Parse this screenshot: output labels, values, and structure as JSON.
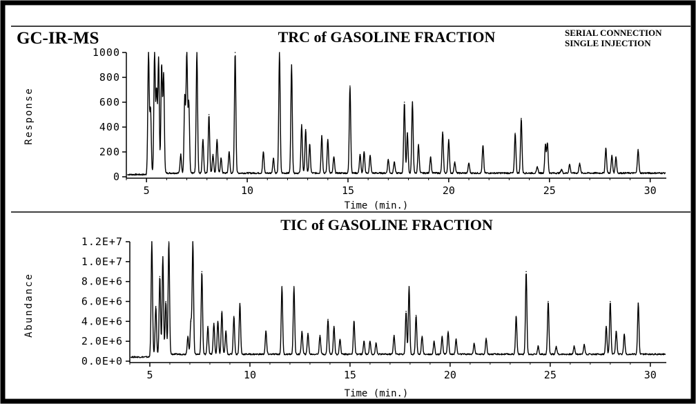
{
  "header": {
    "label": "GC-IR-MS",
    "note_line1": "SERIAL CONNECTION",
    "note_line2": "SINGLE INJECTION"
  },
  "chart_data": [
    {
      "type": "line",
      "title": "TRC of GASOLINE FRACTION",
      "xlabel": "Time   (min.)",
      "ylabel": "Response",
      "xlim": [
        4,
        30.8
      ],
      "ylim": [
        0,
        1000
      ],
      "xticks": [
        5,
        10,
        15,
        20,
        25,
        30
      ],
      "yticks": [
        0,
        200,
        400,
        600,
        800,
        1000
      ],
      "ytick_labels": [
        "0",
        "200",
        "400",
        "600",
        "800",
        "1000"
      ],
      "color": "#000000",
      "baseline": 30,
      "peaks": [
        [
          5.1,
          1000
        ],
        [
          5.2,
          550
        ],
        [
          5.4,
          1000
        ],
        [
          5.5,
          700
        ],
        [
          5.6,
          950
        ],
        [
          5.75,
          900
        ],
        [
          5.85,
          820
        ],
        [
          6.7,
          180
        ],
        [
          6.9,
          650
        ],
        [
          7.0,
          1000
        ],
        [
          7.1,
          600
        ],
        [
          7.5,
          1000
        ],
        [
          7.8,
          300
        ],
        [
          8.1,
          500
        ],
        [
          8.3,
          180
        ],
        [
          8.5,
          300
        ],
        [
          8.7,
          150
        ],
        [
          9.1,
          200
        ],
        [
          9.4,
          1000
        ],
        [
          10.8,
          200
        ],
        [
          11.3,
          150
        ],
        [
          11.6,
          1000
        ],
        [
          12.2,
          900
        ],
        [
          12.7,
          420
        ],
        [
          12.9,
          380
        ],
        [
          13.1,
          260
        ],
        [
          13.7,
          330
        ],
        [
          14.0,
          300
        ],
        [
          14.3,
          160
        ],
        [
          15.1,
          730
        ],
        [
          15.6,
          180
        ],
        [
          15.8,
          200
        ],
        [
          16.1,
          170
        ],
        [
          17.0,
          140
        ],
        [
          17.3,
          120
        ],
        [
          17.8,
          600
        ],
        [
          17.95,
          350
        ],
        [
          18.2,
          600
        ],
        [
          18.5,
          260
        ],
        [
          19.1,
          160
        ],
        [
          19.7,
          360
        ],
        [
          20.0,
          300
        ],
        [
          20.3,
          120
        ],
        [
          21.0,
          110
        ],
        [
          21.7,
          250
        ],
        [
          23.3,
          350
        ],
        [
          23.6,
          470
        ],
        [
          24.4,
          80
        ],
        [
          24.8,
          260
        ],
        [
          24.9,
          270
        ],
        [
          25.6,
          60
        ],
        [
          26.0,
          100
        ],
        [
          26.5,
          110
        ],
        [
          27.8,
          230
        ],
        [
          28.1,
          170
        ],
        [
          28.3,
          160
        ],
        [
          29.4,
          220
        ]
      ]
    },
    {
      "type": "line",
      "title": "TIC of GASOLINE FRACTION",
      "xlabel": "Time   (min.)",
      "ylabel": "Abundance",
      "xlim": [
        4,
        30.8
      ],
      "ylim": [
        0,
        12000000
      ],
      "xticks": [
        5,
        10,
        15,
        20,
        25,
        30
      ],
      "yticks": [
        0,
        2000000,
        4000000,
        6000000,
        8000000,
        10000000,
        12000000
      ],
      "ytick_labels": [
        "0.0E+0",
        "2.0E+6",
        "4.0E+6",
        "6.0E+6",
        "8.0E+6",
        "1.0E+7",
        "1.2E+7"
      ],
      "color": "#000000",
      "baseline": 700000,
      "peaks": [
        [
          5.1,
          12000000
        ],
        [
          5.3,
          5500000
        ],
        [
          5.5,
          8500000
        ],
        [
          5.65,
          10500000
        ],
        [
          5.8,
          6000000
        ],
        [
          5.95,
          12000000
        ],
        [
          6.9,
          2500000
        ],
        [
          7.05,
          4000000
        ],
        [
          7.15,
          12000000
        ],
        [
          7.6,
          9000000
        ],
        [
          7.9,
          3500000
        ],
        [
          8.2,
          3800000
        ],
        [
          8.4,
          4000000
        ],
        [
          8.6,
          5000000
        ],
        [
          8.8,
          3000000
        ],
        [
          9.2,
          4500000
        ],
        [
          9.5,
          5800000
        ],
        [
          10.8,
          3000000
        ],
        [
          11.6,
          7500000
        ],
        [
          12.2,
          7500000
        ],
        [
          12.6,
          3000000
        ],
        [
          12.9,
          2800000
        ],
        [
          13.5,
          2600000
        ],
        [
          13.9,
          4200000
        ],
        [
          14.2,
          3500000
        ],
        [
          14.5,
          2200000
        ],
        [
          15.2,
          4000000
        ],
        [
          15.7,
          2000000
        ],
        [
          16.0,
          2000000
        ],
        [
          16.3,
          1800000
        ],
        [
          17.2,
          2600000
        ],
        [
          17.8,
          5000000
        ],
        [
          17.95,
          7500000
        ],
        [
          18.3,
          4600000
        ],
        [
          18.6,
          2500000
        ],
        [
          19.2,
          2000000
        ],
        [
          19.6,
          2500000
        ],
        [
          19.9,
          3000000
        ],
        [
          20.3,
          2200000
        ],
        [
          21.2,
          1800000
        ],
        [
          21.8,
          2300000
        ],
        [
          23.3,
          4500000
        ],
        [
          23.8,
          9000000
        ],
        [
          24.4,
          1500000
        ],
        [
          24.9,
          6000000
        ],
        [
          25.3,
          1500000
        ],
        [
          26.2,
          1500000
        ],
        [
          26.7,
          1700000
        ],
        [
          27.8,
          3500000
        ],
        [
          28.0,
          6000000
        ],
        [
          28.3,
          3000000
        ],
        [
          28.7,
          2700000
        ],
        [
          29.4,
          5800000
        ]
      ]
    }
  ]
}
